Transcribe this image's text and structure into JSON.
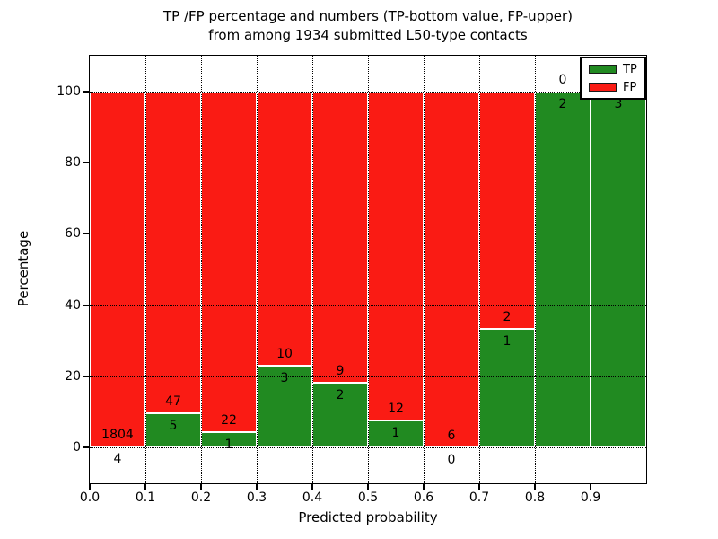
{
  "chart_data": {
    "type": "bar",
    "stacked": true,
    "title_line1": "TP /FP percentage and numbers (TP-bottom value, FP-upper)",
    "title_line2": "from among 1934 submitted L50-type contacts",
    "xlabel": "Predicted probability",
    "ylabel": "Percentage",
    "total_contacts": 1934,
    "xlim": [
      0.0,
      1.0
    ],
    "ylim": [
      -10,
      110
    ],
    "grid": "dotted, on both axes, drawn over bars",
    "x_tick_labels": [
      "0.0",
      "0.1",
      "0.2",
      "0.3",
      "0.4",
      "0.5",
      "0.6",
      "0.7",
      "0.8",
      "0.9"
    ],
    "x_tick_values": [
      0.0,
      0.1,
      0.2,
      0.3,
      0.4,
      0.5,
      0.6,
      0.7,
      0.8,
      0.9
    ],
    "y_tick_labels": [
      "0",
      "20",
      "40",
      "60",
      "80",
      "100"
    ],
    "y_tick_values": [
      0,
      20,
      40,
      60,
      80,
      100
    ],
    "bin_width": 0.1,
    "bins": [
      {
        "range": "0.0-0.1",
        "tp": 4,
        "fp": 1804
      },
      {
        "range": "0.1-0.2",
        "tp": 5,
        "fp": 47
      },
      {
        "range": "0.2-0.3",
        "tp": 1,
        "fp": 22
      },
      {
        "range": "0.3-0.4",
        "tp": 3,
        "fp": 10
      },
      {
        "range": "0.4-0.5",
        "tp": 2,
        "fp": 9
      },
      {
        "range": "0.5-0.6",
        "tp": 1,
        "fp": 12
      },
      {
        "range": "0.6-0.7",
        "tp": 0,
        "fp": 6
      },
      {
        "range": "0.7-0.8",
        "tp": 1,
        "fp": 2
      },
      {
        "range": "0.8-0.9",
        "tp": 2,
        "fp": 0
      },
      {
        "range": "0.9-1.0",
        "tp": 3,
        "fp": 0
      }
    ],
    "legend": [
      {
        "label": "TP",
        "color": "#218a21"
      },
      {
        "label": "FP",
        "color": "#fa1b14"
      }
    ],
    "legend_position": "upper right",
    "colors": {
      "tp": "#218a21",
      "fp": "#fa1b14",
      "grid": "#000000",
      "bar_edge": "#ffffff"
    }
  }
}
